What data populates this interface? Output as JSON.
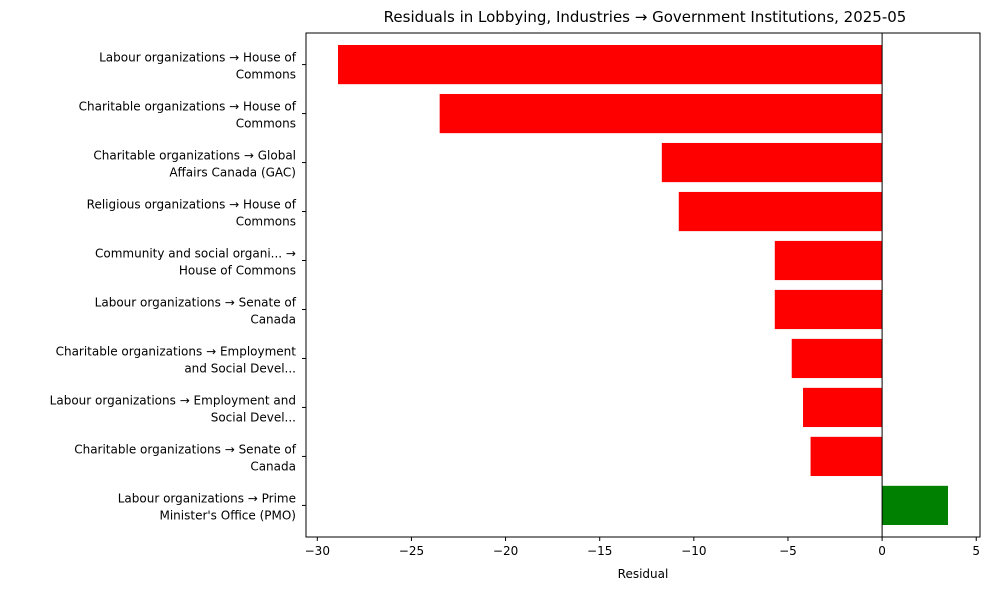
{
  "chart_data": {
    "type": "bar",
    "orientation": "horizontal",
    "title": "Residuals in Lobbying, Industries → Government Institutions, 2025-05",
    "xlabel": "Residual",
    "ylabel": "",
    "xlim": [
      -30.6,
      5.2
    ],
    "xticks": [
      -30,
      -25,
      -20,
      -15,
      -10,
      -5,
      0,
      5
    ],
    "grid": false,
    "legend": "none",
    "positive_color": "#008000",
    "negative_color": "#ff0000",
    "categories": [
      [
        "Labour organizations → House of",
        "Commons"
      ],
      [
        "Charitable organizations → House of",
        "Commons"
      ],
      [
        "Charitable organizations → Global",
        "Affairs Canada (GAC)"
      ],
      [
        "Religious organizations → House of",
        "Commons"
      ],
      [
        "Community and social organi... →",
        "House of Commons"
      ],
      [
        "Labour organizations → Senate of",
        "Canada"
      ],
      [
        "Charitable organizations → Employment",
        "and Social Devel..."
      ],
      [
        "Labour organizations → Employment and",
        "Social Devel..."
      ],
      [
        "Charitable organizations → Senate of",
        "Canada"
      ],
      [
        "Labour organizations → Prime",
        "Minister's Office (PMO)"
      ]
    ],
    "values": [
      -28.9,
      -23.5,
      -11.7,
      -10.8,
      -5.7,
      -5.7,
      -4.8,
      -4.2,
      -3.8,
      3.5
    ]
  }
}
